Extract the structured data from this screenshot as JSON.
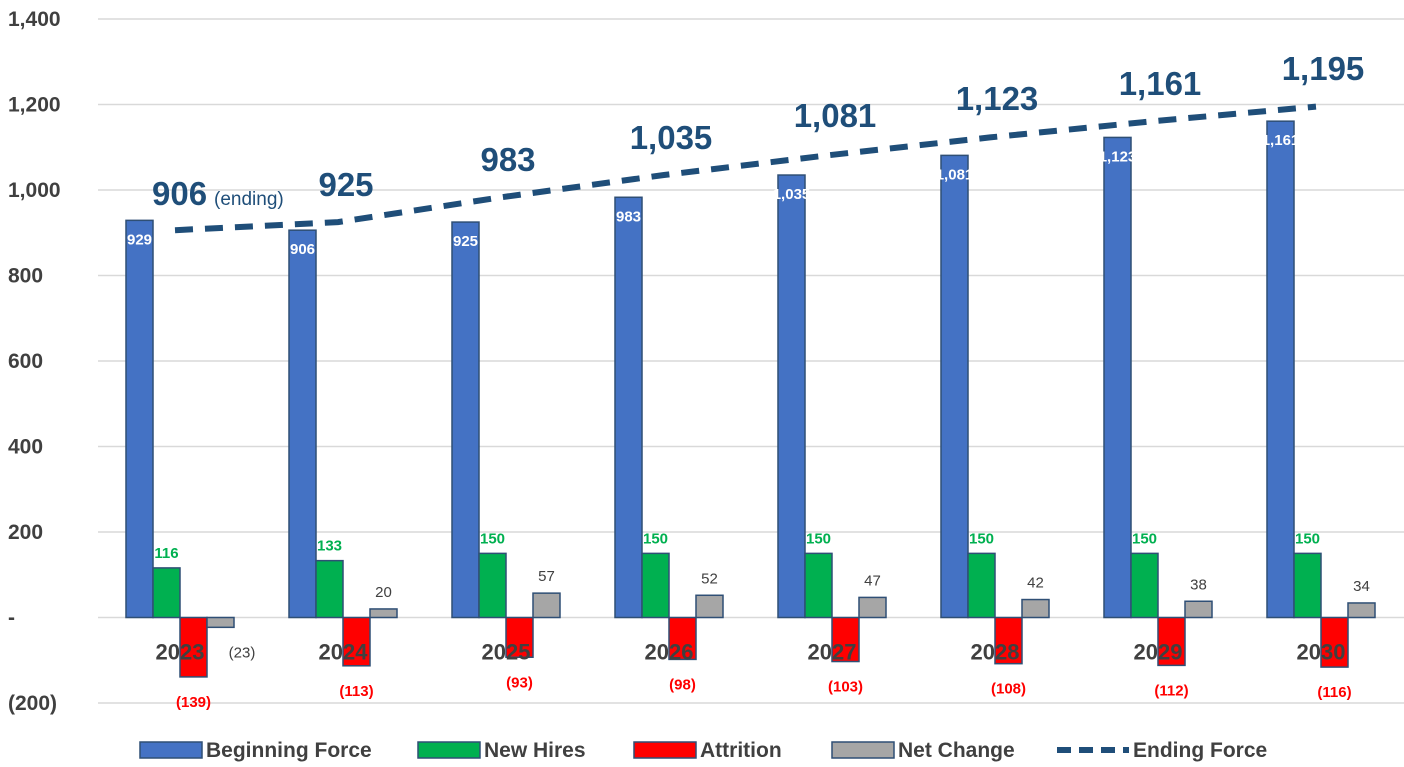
{
  "chart_data": {
    "type": "bar",
    "categories": [
      "2023",
      "2024",
      "2025",
      "2026",
      "2027",
      "2028",
      "2029",
      "2030"
    ],
    "series": [
      {
        "name": "Beginning Force",
        "type": "bar",
        "color": "#4472c4",
        "values": [
          929,
          906,
          925,
          983,
          1035,
          1081,
          1123,
          1161
        ],
        "labels": [
          "929",
          "906",
          "925",
          "983",
          "1,035",
          "1,081",
          "1,123",
          "1,161"
        ]
      },
      {
        "name": "New Hires",
        "type": "bar",
        "color": "#00b050",
        "values": [
          116,
          133,
          150,
          150,
          150,
          150,
          150,
          150
        ],
        "labels": [
          "116",
          "133",
          "150",
          "150",
          "150",
          "150",
          "150",
          "150"
        ]
      },
      {
        "name": "Attrition",
        "type": "bar",
        "color": "#ff0000",
        "values": [
          -139,
          -113,
          -93,
          -98,
          -103,
          -108,
          -112,
          -116
        ],
        "labels": [
          "(139)",
          "(113)",
          "(93)",
          "(98)",
          "(103)",
          "(108)",
          "(112)",
          "(116)"
        ]
      },
      {
        "name": "Net Change",
        "type": "bar",
        "color": "#a6a6a6",
        "values": [
          -23,
          20,
          57,
          52,
          47,
          42,
          38,
          34
        ],
        "labels": [
          "(23)",
          "20",
          "57",
          "52",
          "47",
          "42",
          "38",
          "34"
        ]
      },
      {
        "name": "Ending Force",
        "type": "line",
        "style": "dashed",
        "color": "#1f4e79",
        "values": [
          906,
          925,
          983,
          1035,
          1081,
          1123,
          1161,
          1195
        ],
        "labels": [
          "906",
          "925",
          "983",
          "1,035",
          "1,081",
          "1,123",
          "1,161",
          "1,195"
        ]
      }
    ],
    "ending_note": "(ending)",
    "ylim": [
      -200,
      1400
    ],
    "yticks": [
      {
        "value": 1400,
        "label": "1,400"
      },
      {
        "value": 1200,
        "label": "1,200"
      },
      {
        "value": 1000,
        "label": "1,000"
      },
      {
        "value": 800,
        "label": "800"
      },
      {
        "value": 600,
        "label": "600"
      },
      {
        "value": 400,
        "label": "400"
      },
      {
        "value": 200,
        "label": "200"
      },
      {
        "value": 0,
        "label": "-"
      },
      {
        "value": -200,
        "label": "(200)"
      }
    ],
    "grid": true,
    "legend_position": "bottom",
    "title": "",
    "xlabel": "",
    "ylabel": ""
  }
}
